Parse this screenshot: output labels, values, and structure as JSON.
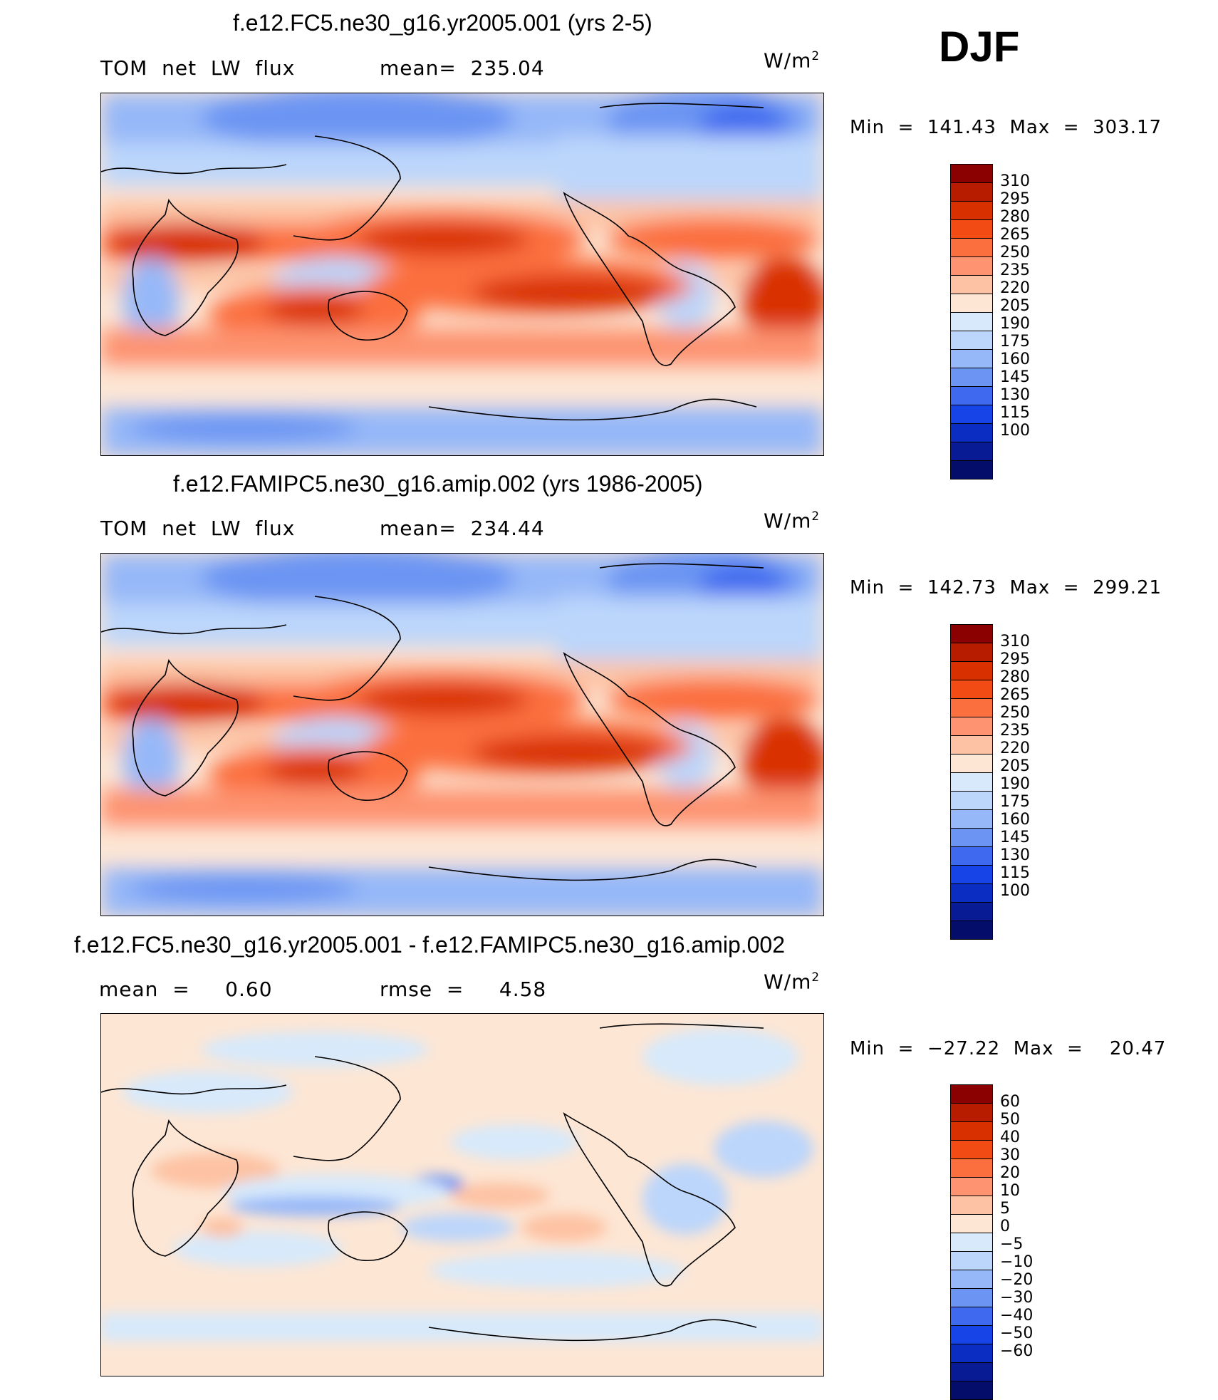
{
  "season": "DJF",
  "panels": [
    {
      "title": "f.e12.FC5.ne30_g16.yr2005.001 (yrs 2-5)",
      "left_text": "TOM  net  LW  flux",
      "mid_text": "mean=  235.04",
      "units": "W/m",
      "units_exp": "2",
      "minmax": "Min  =  141.43  Max  =  303.17",
      "kind": "abs",
      "colorbar": {
        "colors": [
          "#8b0000",
          "#b71c00",
          "#d93000",
          "#f24c14",
          "#fb6e3e",
          "#fd9370",
          "#fdc2a3",
          "#fde6d4",
          "#d7e9fb",
          "#bcd6fb",
          "#96b8f8",
          "#6c95f3",
          "#3f6af0",
          "#1744e6",
          "#0c2dc2",
          "#081b94",
          "#050d6b"
        ],
        "labels": [
          "310",
          "295",
          "280",
          "265",
          "250",
          "235",
          "220",
          "205",
          "190",
          "175",
          "160",
          "145",
          "130",
          "115",
          "100"
        ]
      }
    },
    {
      "title": "f.e12.FAMIPC5.ne30_g16.amip.002 (yrs 1986-2005)",
      "left_text": "TOM  net  LW  flux",
      "mid_text": "mean=  234.44",
      "units": "W/m",
      "units_exp": "2",
      "minmax": "Min  =  142.73  Max  =  299.21",
      "kind": "abs",
      "colorbar": {
        "colors": [
          "#8b0000",
          "#b71c00",
          "#d93000",
          "#f24c14",
          "#fb6e3e",
          "#fd9370",
          "#fdc2a3",
          "#fde6d4",
          "#d7e9fb",
          "#bcd6fb",
          "#96b8f8",
          "#6c95f3",
          "#3f6af0",
          "#1744e6",
          "#0c2dc2",
          "#081b94",
          "#050d6b"
        ],
        "labels": [
          "310",
          "295",
          "280",
          "265",
          "250",
          "235",
          "220",
          "205",
          "190",
          "175",
          "160",
          "145",
          "130",
          "115",
          "100"
        ]
      }
    },
    {
      "title": "f.e12.FC5.ne30_g16.yr2005.001 - f.e12.FAMIPC5.ne30_g16.amip.002",
      "left_text": "mean  =     0.60",
      "mid_text": "rmse  =     4.58",
      "units": "W/m",
      "units_exp": "2",
      "minmax": "Min  =  −27.22  Max  =    20.47",
      "kind": "diff",
      "colorbar": {
        "colors": [
          "#8b0000",
          "#b71c00",
          "#d93000",
          "#f24c14",
          "#fb6e3e",
          "#fd9370",
          "#fdc2a3",
          "#fde6d4",
          "#d7e9fb",
          "#bcd6fb",
          "#96b8f8",
          "#6c95f3",
          "#3f6af0",
          "#1744e6",
          "#0c2dc2",
          "#081b94",
          "#050d6b"
        ],
        "labels": [
          "60",
          "50",
          "40",
          "30",
          "20",
          "10",
          "5",
          "0",
          "−5",
          "−10",
          "−20",
          "−30",
          "−40",
          "−50",
          "−60"
        ]
      }
    }
  ]
}
